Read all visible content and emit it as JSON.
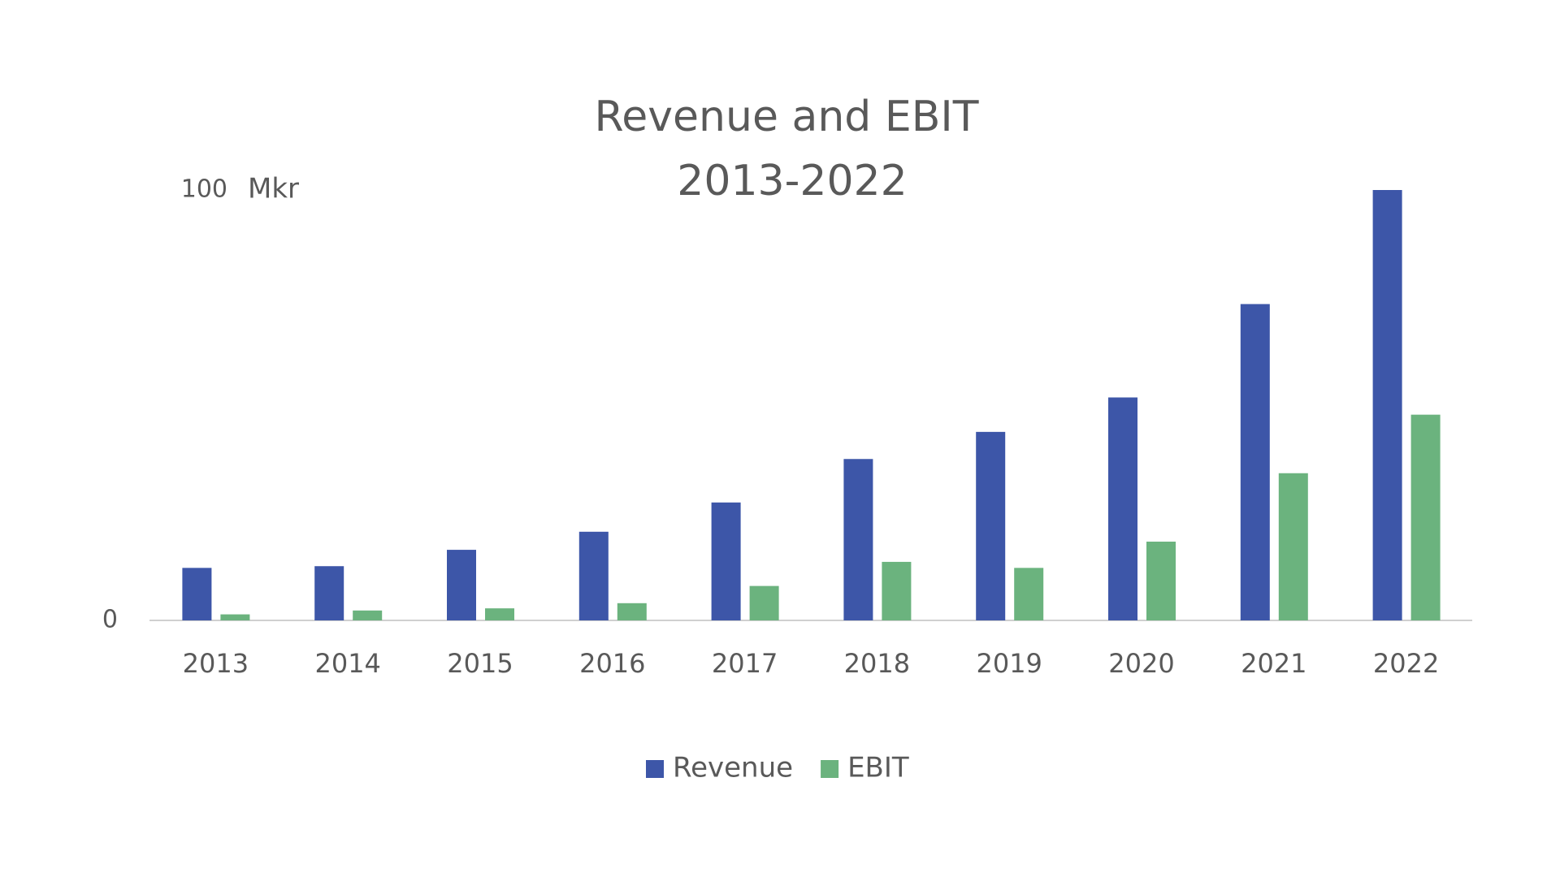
{
  "chart_data": {
    "type": "bar",
    "title": "Revenue and EBIT",
    "subtitle": "2013-2022",
    "y_label": "Mkr",
    "categories": [
      "2013",
      "2014",
      "2015",
      "2016",
      "2017",
      "2018",
      "2019",
      "2020",
      "2021",
      "2022"
    ],
    "series": [
      {
        "name": "Revenue",
        "color": "#3d56a8",
        "values": [
          12.2,
          12.6,
          16.4,
          20.6,
          27.4,
          37.5,
          43.8,
          51.8,
          73.5,
          100
        ]
      },
      {
        "name": "EBIT",
        "color": "#6bb37e",
        "values": [
          1.4,
          2.3,
          2.8,
          4.0,
          8.0,
          13.6,
          12.2,
          18.3,
          34.2,
          47.8
        ]
      }
    ],
    "ylim": [
      0,
      100
    ],
    "yticks": [
      0,
      100
    ],
    "grid": false,
    "legend": "bottom"
  }
}
